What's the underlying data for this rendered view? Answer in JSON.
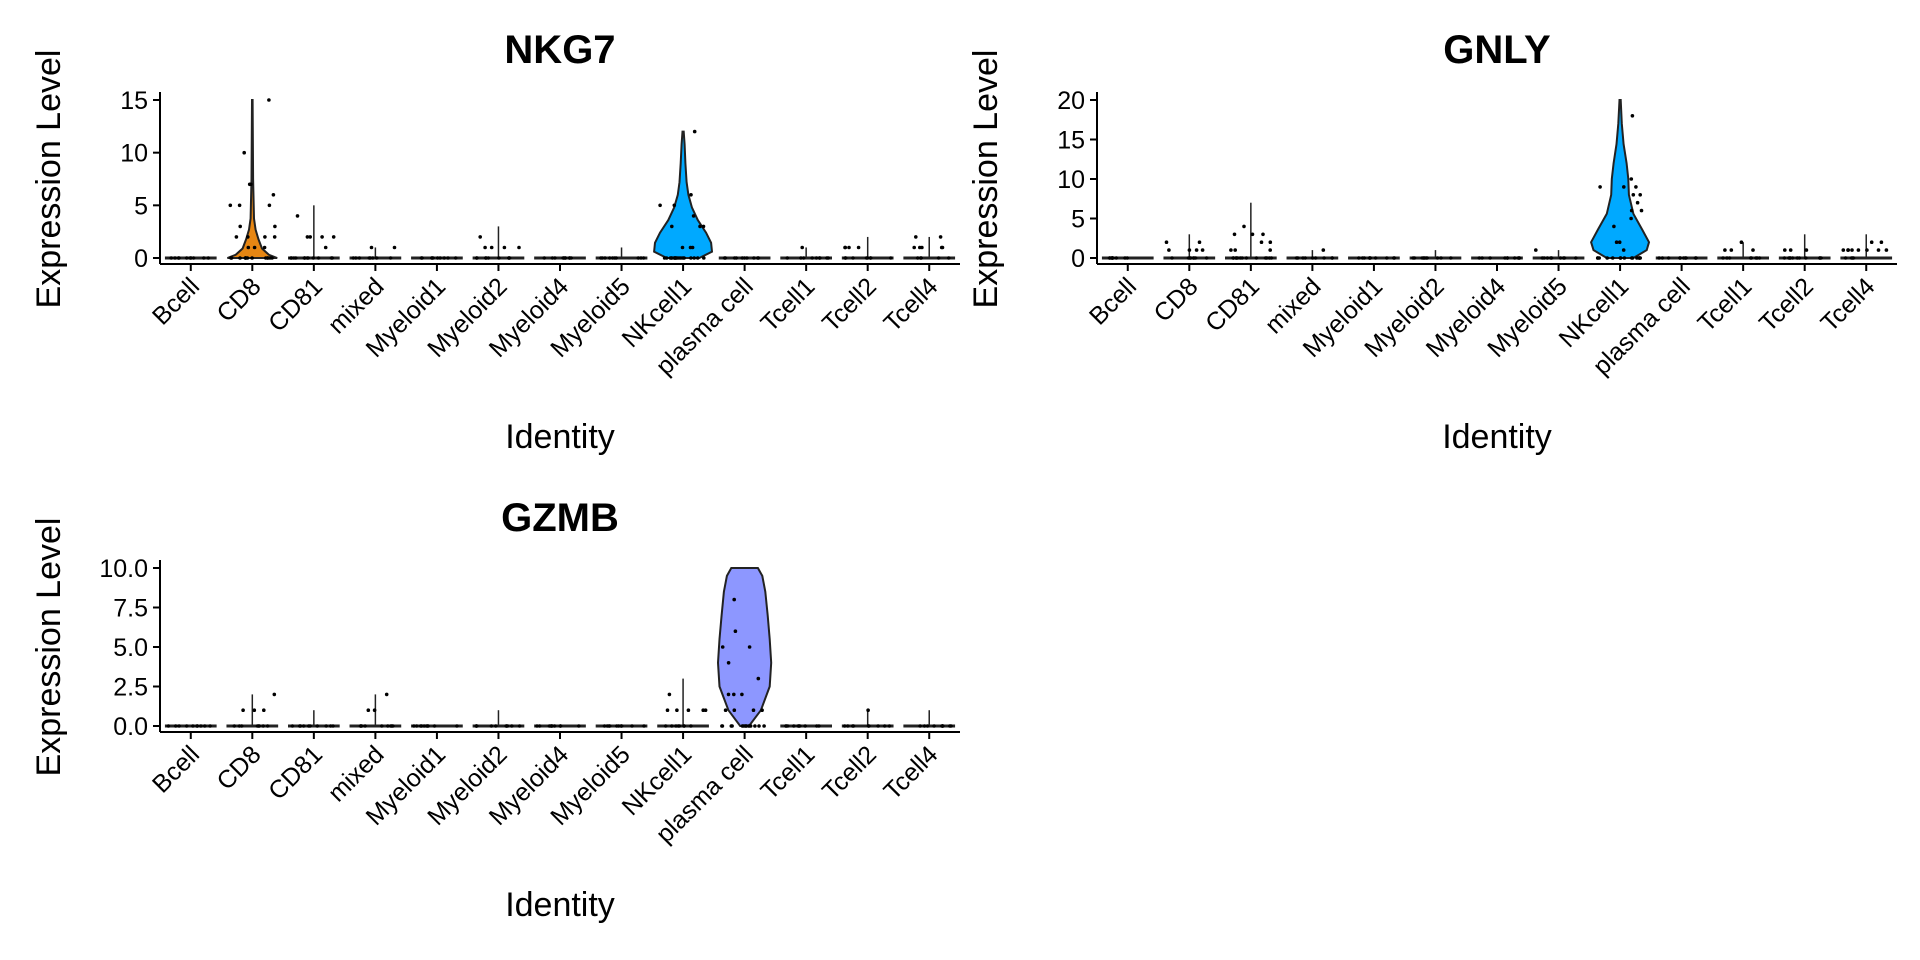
{
  "chart_data": [
    {
      "type": "violin",
      "title": "NKG7",
      "xlabel": "Identity",
      "ylabel": "Expression Level",
      "ylim": [
        0,
        15
      ],
      "yticks": [
        "0",
        "5",
        "10",
        "15"
      ],
      "grid": false,
      "categories": [
        "Bcell",
        "CD8",
        "CD81",
        "mixed",
        "Myeloid1",
        "Myeloid2",
        "Myeloid4",
        "Myeloid5",
        "NKcell1",
        "plasma cell",
        "Tcell1",
        "Tcell2",
        "Tcell4"
      ],
      "max_values": [
        0,
        15,
        5,
        1,
        0,
        3,
        0,
        1,
        12,
        0,
        1,
        2,
        2
      ],
      "highlight": {
        "NKcell1": "#00A9FF",
        "CD8": "#E68613"
      }
    },
    {
      "type": "violin",
      "title": "GNLY",
      "xlabel": "Identity",
      "ylabel": "Expression Level",
      "ylim": [
        0,
        20
      ],
      "yticks": [
        "0",
        "5",
        "10",
        "15",
        "20"
      ],
      "grid": false,
      "categories": [
        "Bcell",
        "CD8",
        "CD81",
        "mixed",
        "Myeloid1",
        "Myeloid2",
        "Myeloid4",
        "Myeloid5",
        "NKcell1",
        "plasma cell",
        "Tcell1",
        "Tcell2",
        "Tcell4"
      ],
      "max_values": [
        0,
        3,
        7,
        1,
        0,
        1,
        0,
        1,
        20,
        0,
        2,
        3,
        3
      ],
      "highlight": {
        "NKcell1": "#00A9FF"
      }
    },
    {
      "type": "violin",
      "title": "GZMB",
      "xlabel": "Identity",
      "ylabel": "Expression Level",
      "ylim": [
        0,
        10
      ],
      "yticks": [
        "0.0",
        "2.5",
        "5.0",
        "7.5",
        "10.0"
      ],
      "grid": false,
      "categories": [
        "Bcell",
        "CD8",
        "CD81",
        "mixed",
        "Myeloid1",
        "Myeloid2",
        "Myeloid4",
        "Myeloid5",
        "NKcell1",
        "plasma cell",
        "Tcell1",
        "Tcell2",
        "Tcell4"
      ],
      "max_values": [
        0,
        2,
        1,
        2,
        0,
        1,
        0,
        0,
        3,
        10,
        0,
        1,
        1
      ],
      "highlight": {
        "plasma cell": "#8D97FF"
      }
    }
  ]
}
